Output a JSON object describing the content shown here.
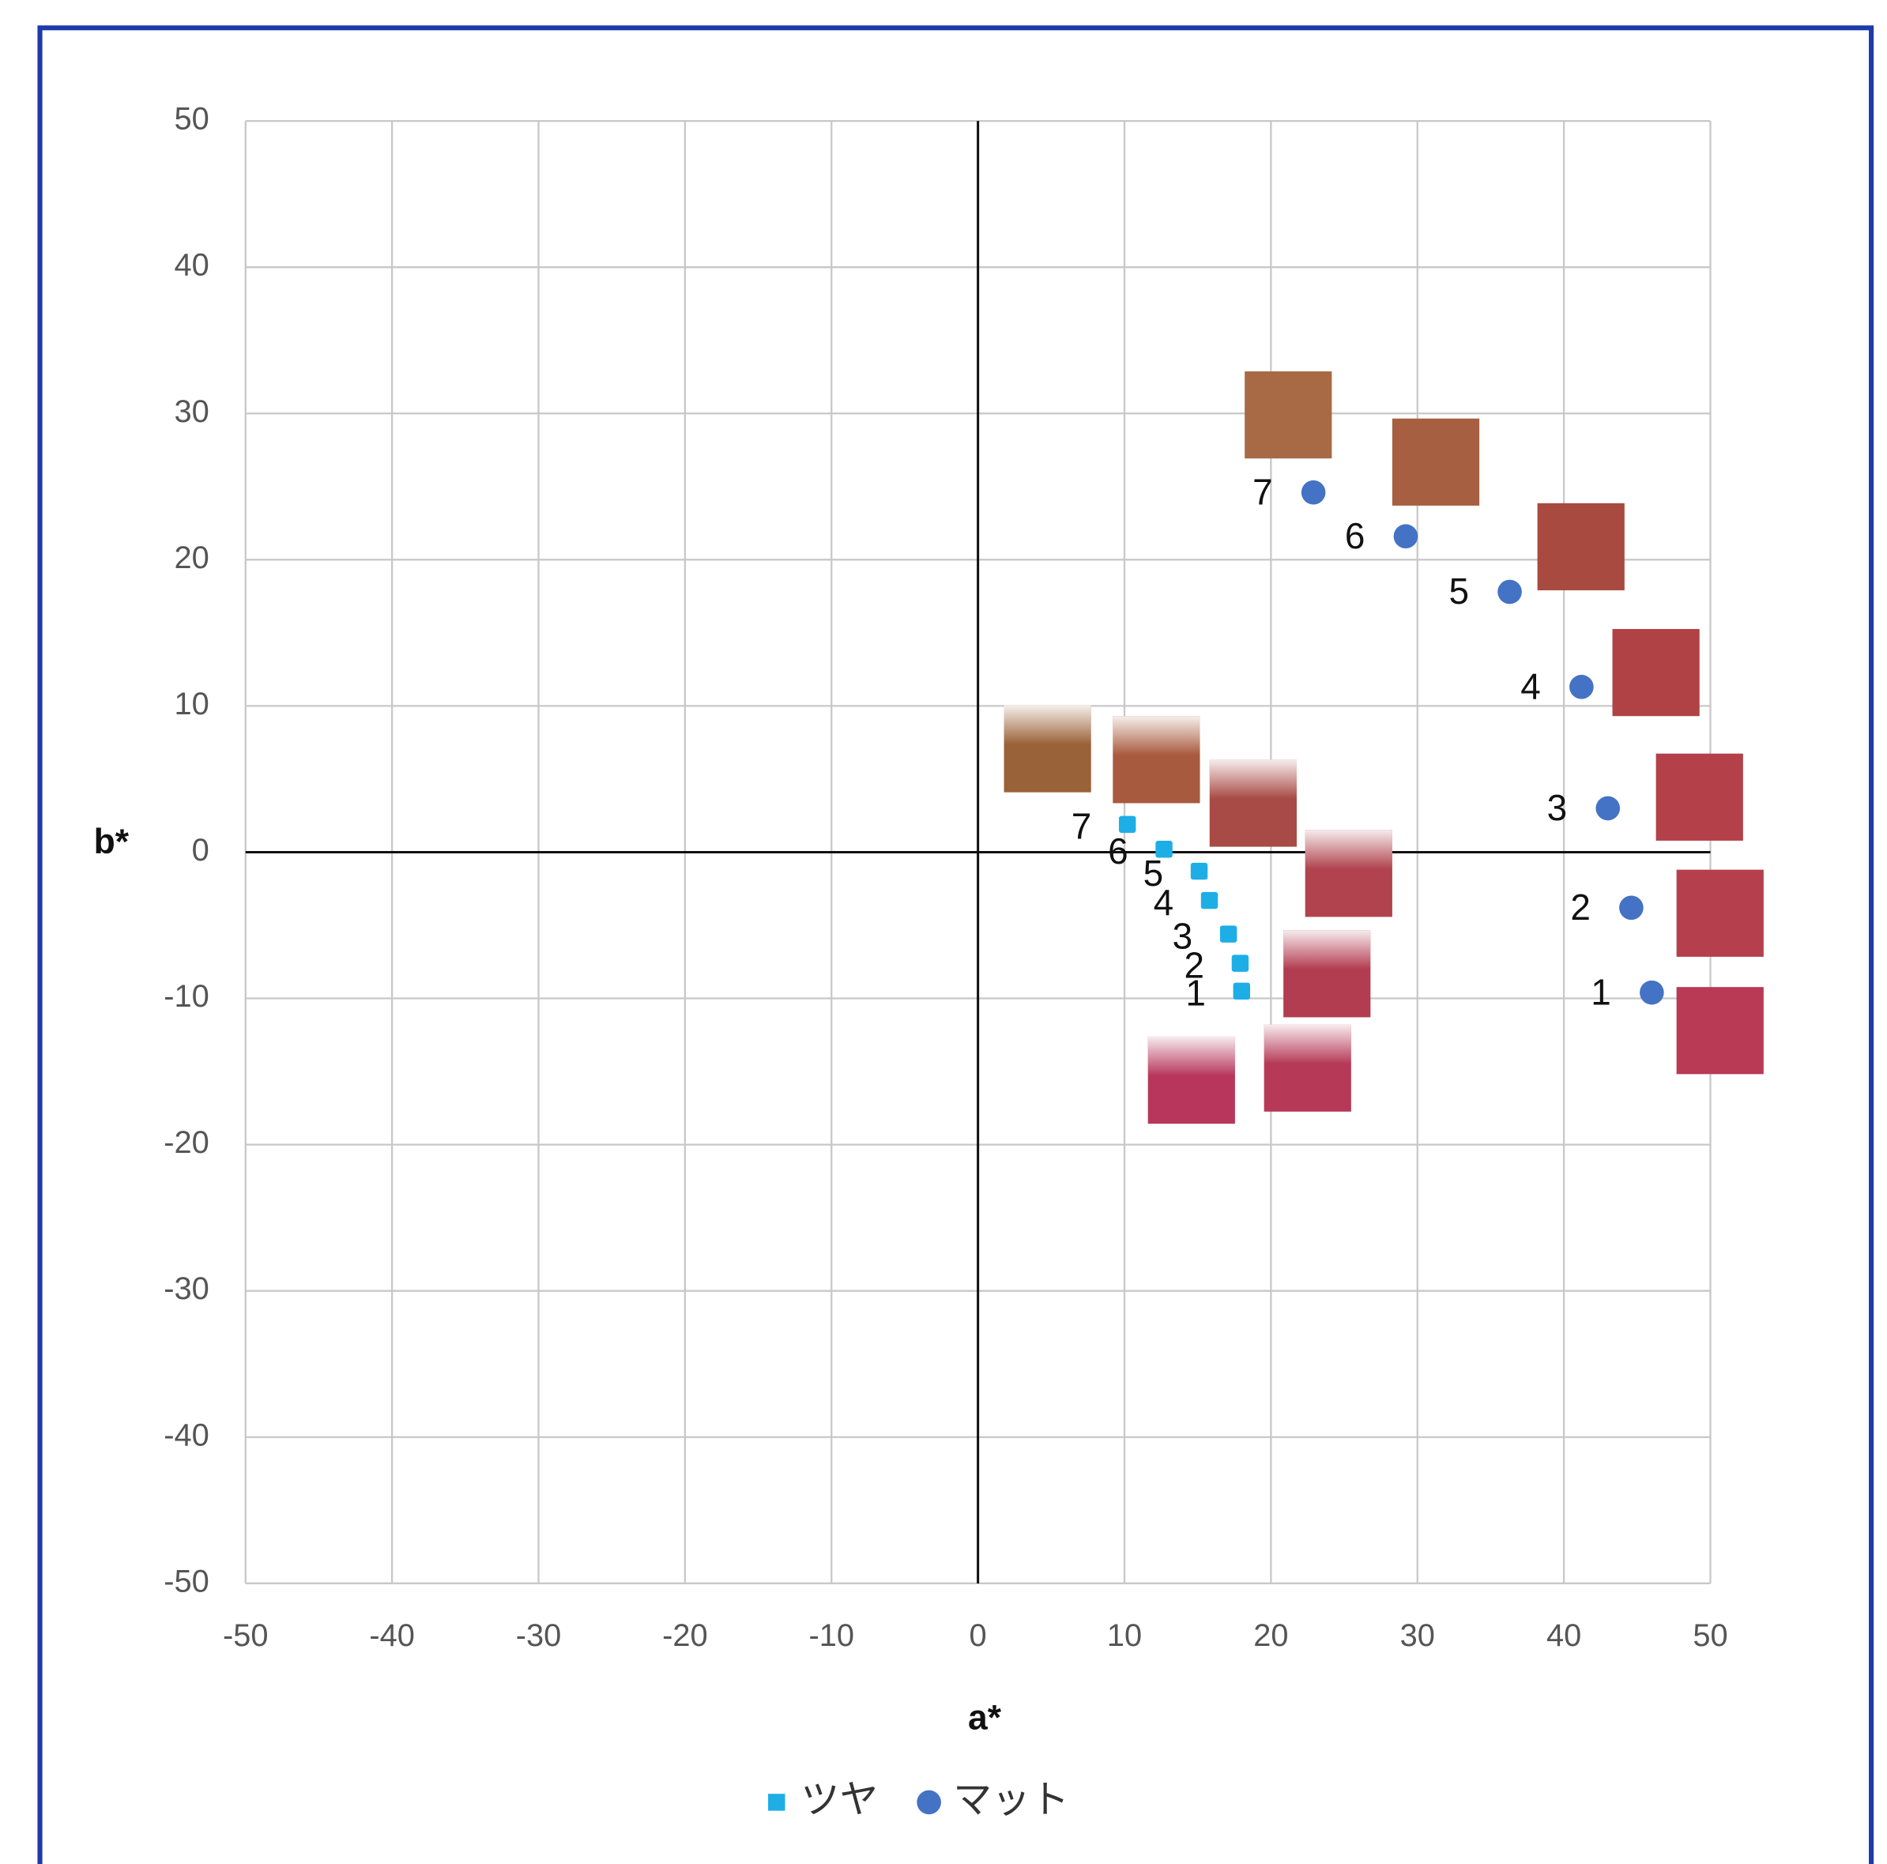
{
  "chart_data": {
    "type": "scatter",
    "x_label": "a*",
    "y_label": "b*",
    "xlim": [
      -50,
      50
    ],
    "xticks": [
      -50,
      -40,
      -30,
      -20,
      -10,
      0,
      10,
      20,
      30,
      40,
      50
    ],
    "ylim": [
      -50,
      50
    ],
    "yticks": [
      -50,
      -40,
      -30,
      -20,
      -10,
      0,
      10,
      20,
      30,
      40,
      50
    ],
    "grid": true,
    "legend": "bottom",
    "series": [
      {
        "name": "ツヤ",
        "color": "#1eaee6",
        "marker": "square",
        "x": [
          18.0,
          17.9,
          17.1,
          15.8,
          15.1,
          12.7,
          10.2
        ],
        "values": [
          -9.5,
          -7.6,
          -5.6,
          -3.3,
          -1.3,
          0.2,
          1.9
        ],
        "labels": [
          "1",
          "2",
          "3",
          "4",
          "5",
          "6",
          "7"
        ]
      },
      {
        "name": "マット",
        "color": "#4472c4",
        "marker": "circle",
        "x": [
          46.0,
          44.6,
          43.0,
          41.2,
          36.3,
          29.2,
          22.9
        ],
        "values": [
          -9.6,
          -3.8,
          3.0,
          11.3,
          17.8,
          21.6,
          24.6
        ],
        "labels": [
          "1",
          "2",
          "3",
          "4",
          "5",
          "6",
          "7"
        ]
      }
    ]
  }
}
